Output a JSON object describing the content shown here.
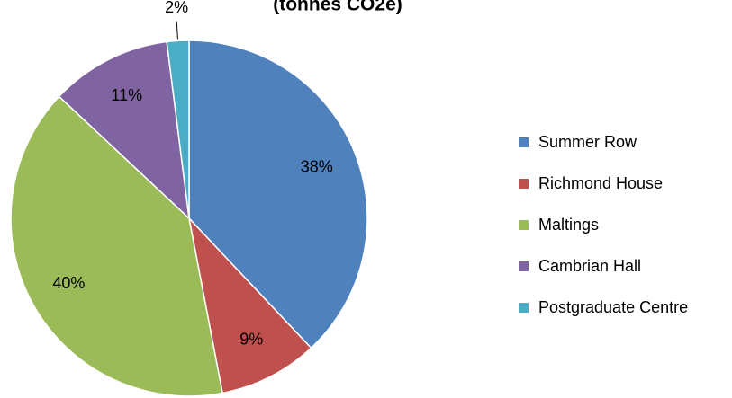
{
  "chart_data": {
    "type": "pie",
    "title": "(tonnes CO2e)",
    "categories": [
      "Summer Row",
      "Richmond House",
      "Maltings",
      "Cambrian Hall",
      "Postgraduate Centre"
    ],
    "values": [
      38,
      9,
      40,
      11,
      2
    ],
    "value_labels": [
      "38%",
      "9%",
      "40%",
      "11%",
      "2%"
    ],
    "colors": [
      "#4f81bd",
      "#c0504d",
      "#9bbb59",
      "#8064a2",
      "#4bacc6"
    ],
    "legend": "right"
  }
}
